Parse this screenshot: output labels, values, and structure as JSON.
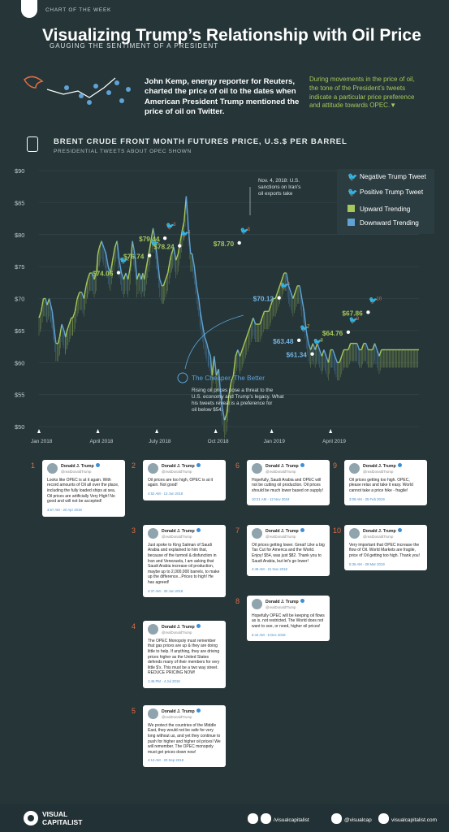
{
  "header": {
    "tag": "CHART OF THE WEEK",
    "title": "Visualizing Trump’s Relationship with Oil Price",
    "subtitle": "GAUGING THE SENTIMENT OF A PRESIDENT",
    "intro": "John Kemp, energy reporter for Reuters, charted the price of oil to the dates when American President Trump mentioned the price of oil on Twitter.",
    "intro_right": "During movements in the price of oil, the tone of the President’s tweets indicate a particular price preference and attitude towards OPEC.▼",
    "axis_title": "BRENT CRUDE FRONT MONTH FUTURES PRICE, U.S.$ PER BARREL",
    "axis_subtitle": "PRESIDENTIAL TWEETS ABOUT OPEC SHOWN"
  },
  "colors": {
    "background": "#253538",
    "up": "#a6c85a",
    "down": "#5fa3d6",
    "negative": "#e06d45",
    "positive": "#d9c23d"
  },
  "legend": {
    "negative": "Negative Trump Tweet",
    "positive": "Positive Trump Tweet",
    "up": "Upward Trending",
    "down": "Downward Trending"
  },
  "chart_data": {
    "type": "line",
    "title": "BRENT CRUDE FRONT MONTH FUTURES PRICE, U.S.$ PER BARREL",
    "ylim": [
      50,
      90
    ],
    "y_ticks": [
      "$50",
      "$55",
      "$60",
      "$65",
      "$70",
      "$75",
      "$80",
      "$85",
      "$90"
    ],
    "x_ticks": [
      "Jan 2018",
      "April 2018",
      "July 2018",
      "Oct 2018",
      "Jan 2019",
      "April 2019"
    ],
    "series": [
      {
        "x": [
          0,
          3,
          6,
          9,
          11,
          14,
          16,
          18,
          20,
          23,
          26,
          28,
          31,
          34,
          36,
          38,
          41,
          44,
          46,
          49,
          52,
          55,
          58,
          61,
          64,
          66,
          69,
          72,
          75,
          78,
          80,
          82,
          85,
          88,
          91,
          94,
          97,
          100,
          103,
          106,
          109,
          112,
          115,
          118,
          121,
          124,
          127,
          130,
          133,
          136,
          139,
          141,
          143,
          146,
          149,
          152,
          155,
          158,
          161,
          164,
          167,
          169,
          172,
          175,
          178,
          180,
          183,
          186,
          189,
          192,
          195,
          197,
          200,
          203,
          206,
          208,
          211,
          214,
          217,
          219,
          222,
          225,
          228,
          230,
          233,
          235,
          238,
          241,
          244,
          246,
          249,
          252,
          255,
          258,
          261,
          264,
          267,
          270,
          273,
          276,
          279,
          282,
          285,
          288,
          291,
          294,
          297,
          300,
          303,
          306,
          309,
          312,
          315,
          318,
          321,
          324,
          327,
          330,
          333,
          336,
          339,
          342,
          345,
          348,
          351,
          354,
          357,
          360,
          363,
          366,
          369,
          372,
          375,
          378,
          381,
          384,
          387,
          390,
          393,
          396,
          399,
          402,
          405,
          408,
          411,
          414,
          417,
          420,
          423,
          426,
          429,
          432,
          435,
          438,
          441,
          444,
          447,
          450,
          453,
          456,
          459,
          462,
          465,
          468,
          471,
          474,
          477,
          480,
          483,
          486,
          489,
          492,
          495,
          498,
          501,
          504,
          507,
          510,
          513,
          516
        ],
        "y": [
          67,
          68,
          70,
          70,
          69,
          70,
          69,
          68,
          66,
          63,
          63,
          64,
          66,
          65,
          64,
          65,
          66,
          67,
          67,
          68,
          70,
          71,
          71,
          70,
          72,
          73,
          74,
          74,
          73,
          74,
          77,
          78,
          79,
          78,
          77,
          75,
          74,
          76,
          78,
          79,
          76,
          74,
          73,
          74,
          73,
          75,
          79,
          77,
          73,
          74,
          73,
          74,
          73,
          75,
          77,
          79,
          81,
          79,
          76,
          73,
          72,
          72,
          73,
          74,
          76,
          77,
          78,
          76,
          77,
          79,
          81,
          82,
          86,
          81,
          77,
          77,
          75,
          72,
          70,
          68,
          66,
          64,
          63,
          62,
          61,
          58,
          61,
          58,
          59,
          56,
          53,
          51,
          52,
          55,
          57,
          58,
          61,
          62,
          61,
          62,
          63,
          64,
          65,
          66,
          67,
          66,
          66,
          66,
          67,
          68,
          68,
          68,
          69,
          70,
          70,
          71,
          72,
          73,
          74,
          74,
          72,
          71,
          70,
          71,
          72,
          72,
          70,
          68,
          65,
          63,
          62,
          63,
          62,
          63,
          62,
          61,
          62,
          61,
          60,
          62,
          62,
          61,
          60,
          60,
          61,
          62,
          62,
          62,
          63,
          63,
          63,
          63,
          62,
          62,
          63,
          63,
          62,
          62,
          62,
          63,
          62,
          61,
          62,
          62,
          62,
          62,
          62,
          62,
          62,
          62,
          62,
          62,
          62,
          62,
          62,
          62,
          62,
          62,
          62,
          62
        ]
      }
    ],
    "points": [
      {
        "n": "1",
        "price": "$74.06",
        "kind": "negative"
      },
      {
        "n": "2",
        "price": "$76.74",
        "kind": "negative"
      },
      {
        "n": "3",
        "price": "$79.44",
        "kind": "negative"
      },
      {
        "n": "4",
        "price": "$78.24",
        "kind": "negative"
      },
      {
        "n": "5",
        "price": "$78.70",
        "kind": "negative"
      },
      {
        "n": "6",
        "price": "$70.12",
        "kind": "negative"
      },
      {
        "n": "7",
        "price": "$63.48",
        "kind": "positive"
      },
      {
        "n": "8",
        "price": "$61.34",
        "kind": "positive"
      },
      {
        "n": "9",
        "price": "$64.76",
        "kind": "negative"
      },
      {
        "n": "10",
        "price": "$67.86",
        "kind": "negative"
      }
    ],
    "annotations": {
      "nov": "Nov. 4, 2018: U.S. sanctions on Iran’s oil exports take effect.",
      "cheaper_title": "The Cheaper, The Better",
      "cheaper_text": "Rising oil prices pose a threat to the U.S. economy and Trump’s legacy. What his tweets reveal is a preference for oil below $54."
    }
  },
  "tweets": [
    {
      "n": "1",
      "name": "Donald J. Trump",
      "handle": "@realDonaldTrump",
      "text": "Looks like OPEC is at it again. With record amounts of Oil all over the place, including the fully loaded ships at sea, Oil prices are artificially Very High! No good and will not be accepted!",
      "time": "3:57 AM - 20 Apr 2018"
    },
    {
      "n": "2",
      "name": "Donald J. Trump",
      "handle": "@realDonaldTrump",
      "text": "Oil prices are too high, OPEC is at it again. Not good!",
      "time": "4:52 AM - 13 Jun 2018"
    },
    {
      "n": "3",
      "name": "Donald J. Trump",
      "handle": "@realDonaldTrump",
      "text": "Just spoke to King Salman of Saudi Arabia and explained to him that, because of the turmoil & disfunction in Iran and Venezuela, I am asking that Saudi Arabia increase oil production, maybe up to 2,000,000 barrels, to make up the difference...Prices to high! He has agreed!",
      "time": "4:37 AM - 30 Jun 2018"
    },
    {
      "n": "4",
      "name": "Donald J. Trump",
      "handle": "@realDonaldTrump",
      "text": "The OPEC Monopoly must remember that gas prices are up & they are doing little to help. If anything, they are driving prices higher as the United States defends many of their members for very little $'s. This must be a two way street. REDUCE PRICING NOW!",
      "time": "1:46 PM - 4 Jul 2018"
    },
    {
      "n": "5",
      "name": "Donald J. Trump",
      "handle": "@realDonaldTrump",
      "text": "We protect the countries of the Middle East, they would not be safe for very long without us, and yet they continue to push for higher and higher oil prices! We will remember. The OPEC monopoly must get prices down now!",
      "time": "4:13 AM - 20 Sep 2018"
    },
    {
      "n": "6",
      "name": "Donald J. Trump",
      "handle": "@realDonaldTrump",
      "text": "Hopefully, Saudi Arabia and OPEC will not be cutting oil production. Oil prices should be much lower based on supply!",
      "time": "10:21 AM - 12 Nov 2018"
    },
    {
      "n": "7",
      "name": "Donald J. Trump",
      "handle": "@realDonaldTrump",
      "text": "Oil prices getting lower. Great! Like a big Tax Cut for America and the World. Enjoy! $54, was just $82. Thank you to Saudi Arabia, but let's go lower!",
      "time": "4:49 AM - 21 Nov 2018"
    },
    {
      "n": "8",
      "name": "Donald J. Trump",
      "handle": "@realDonaldTrump",
      "text": "Hopefully OPEC will be keeping oil flows as is, not restricted. The World does not want to see, or need, higher oil prices!",
      "time": "6:44 AM - 5 Dec 2018"
    },
    {
      "n": "9",
      "name": "Donald J. Trump",
      "handle": "@realDonaldTrump",
      "text": "Oil prices getting too high. OPEC, please relax and take it easy. World cannot take a price hike - fragile!",
      "time": "3:08 AM - 25 Feb 2019"
    },
    {
      "n": "10",
      "name": "Donald J. Trump",
      "handle": "@realDonaldTrump",
      "text": "Very important that OPEC increase the flow of Oil. World Markets are fragile, price of Oil getting too high. Thank you!",
      "time": "5:36 AM - 28 Mar 2019"
    }
  ],
  "footer": {
    "brand_top": "VISUAL",
    "brand_bottom": "CAPITALIST",
    "fb_handle": "/visualcapitalist",
    "ig_handle": "@visualcap",
    "web": "visualcapitalist.com"
  }
}
